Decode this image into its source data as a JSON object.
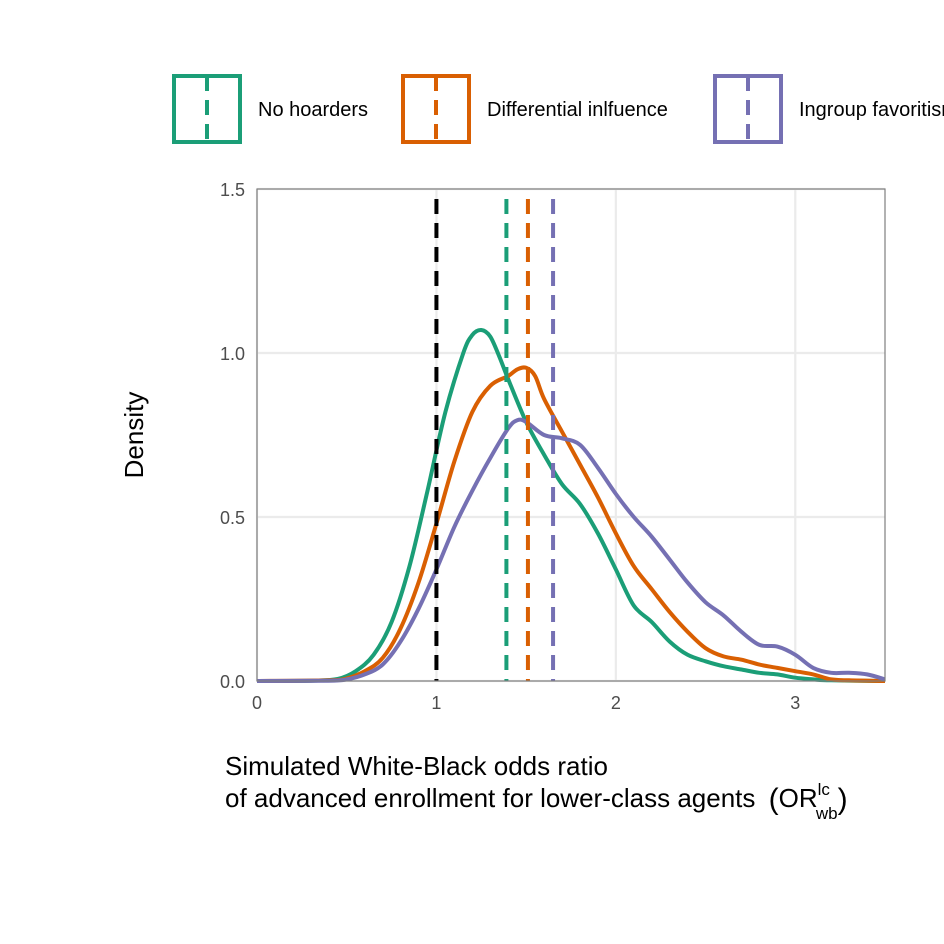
{
  "chart_data": {
    "type": "line",
    "xlabel_line1": "Simulated White-Black odds ratio",
    "xlabel_line2": "of advanced enrollment for lower-class agents",
    "xlabel_symbol": "OR",
    "xlabel_superscript": "lc",
    "xlabel_subscript": "wb",
    "ylabel": "Density",
    "xlim": [
      0,
      3.5
    ],
    "ylim": [
      0,
      1.5
    ],
    "x_ticks": [
      0,
      1,
      2,
      3
    ],
    "x_tick_labels": [
      "0",
      "1",
      "2",
      "3"
    ],
    "y_ticks": [
      0,
      0.5,
      1.0,
      1.5
    ],
    "y_tick_labels": [
      "0.0",
      "0.5",
      "1.0",
      "1.5"
    ],
    "grid": true,
    "legend_position": "top",
    "reference_line": {
      "x": 1,
      "color": "#000000"
    },
    "series": [
      {
        "name": "No hoarders",
        "color": "#1b9e77",
        "mean": 1.39,
        "points": [
          [
            0,
            0
          ],
          [
            0.3,
            0.001
          ],
          [
            0.45,
            0.006
          ],
          [
            0.55,
            0.03
          ],
          [
            0.65,
            0.08
          ],
          [
            0.75,
            0.18
          ],
          [
            0.85,
            0.35
          ],
          [
            0.95,
            0.58
          ],
          [
            1.05,
            0.82
          ],
          [
            1.15,
            1.0
          ],
          [
            1.2,
            1.055
          ],
          [
            1.25,
            1.07
          ],
          [
            1.3,
            1.05
          ],
          [
            1.35,
            0.99
          ],
          [
            1.4,
            0.92
          ],
          [
            1.5,
            0.79
          ],
          [
            1.6,
            0.69
          ],
          [
            1.7,
            0.6
          ],
          [
            1.8,
            0.54
          ],
          [
            1.9,
            0.45
          ],
          [
            2.0,
            0.34
          ],
          [
            2.1,
            0.23
          ],
          [
            2.2,
            0.18
          ],
          [
            2.3,
            0.12
          ],
          [
            2.4,
            0.08
          ],
          [
            2.5,
            0.06
          ],
          [
            2.6,
            0.045
          ],
          [
            2.7,
            0.035
          ],
          [
            2.8,
            0.025
          ],
          [
            2.9,
            0.02
          ],
          [
            3.0,
            0.01
          ],
          [
            3.1,
            0.005
          ],
          [
            3.2,
            0.002
          ],
          [
            3.5,
            0
          ]
        ]
      },
      {
        "name": "Differential inlfuence",
        "color": "#d95f02",
        "mean": 1.51,
        "points": [
          [
            0,
            0
          ],
          [
            0.4,
            0.002
          ],
          [
            0.5,
            0.008
          ],
          [
            0.6,
            0.03
          ],
          [
            0.7,
            0.07
          ],
          [
            0.8,
            0.16
          ],
          [
            0.9,
            0.3
          ],
          [
            1.0,
            0.48
          ],
          [
            1.1,
            0.67
          ],
          [
            1.2,
            0.82
          ],
          [
            1.3,
            0.9
          ],
          [
            1.4,
            0.93
          ],
          [
            1.45,
            0.95
          ],
          [
            1.5,
            0.955
          ],
          [
            1.55,
            0.93
          ],
          [
            1.6,
            0.86
          ],
          [
            1.7,
            0.76
          ],
          [
            1.8,
            0.66
          ],
          [
            1.9,
            0.56
          ],
          [
            2.0,
            0.45
          ],
          [
            2.1,
            0.35
          ],
          [
            2.2,
            0.28
          ],
          [
            2.3,
            0.21
          ],
          [
            2.4,
            0.15
          ],
          [
            2.5,
            0.1
          ],
          [
            2.6,
            0.075
          ],
          [
            2.7,
            0.065
          ],
          [
            2.8,
            0.05
          ],
          [
            2.9,
            0.04
          ],
          [
            3.0,
            0.03
          ],
          [
            3.1,
            0.02
          ],
          [
            3.2,
            0.005
          ],
          [
            3.3,
            0.002
          ],
          [
            3.5,
            0
          ]
        ]
      },
      {
        "name": "Ingroup favoritism",
        "color": "#7570b3",
        "mean": 1.65,
        "points": [
          [
            0,
            0
          ],
          [
            0.4,
            0.001
          ],
          [
            0.5,
            0.005
          ],
          [
            0.6,
            0.02
          ],
          [
            0.7,
            0.05
          ],
          [
            0.8,
            0.12
          ],
          [
            0.9,
            0.22
          ],
          [
            1.0,
            0.34
          ],
          [
            1.1,
            0.47
          ],
          [
            1.2,
            0.58
          ],
          [
            1.3,
            0.68
          ],
          [
            1.4,
            0.77
          ],
          [
            1.45,
            0.795
          ],
          [
            1.5,
            0.79
          ],
          [
            1.6,
            0.75
          ],
          [
            1.7,
            0.74
          ],
          [
            1.8,
            0.72
          ],
          [
            1.9,
            0.65
          ],
          [
            2.0,
            0.57
          ],
          [
            2.1,
            0.5
          ],
          [
            2.2,
            0.44
          ],
          [
            2.3,
            0.37
          ],
          [
            2.4,
            0.3
          ],
          [
            2.5,
            0.24
          ],
          [
            2.6,
            0.2
          ],
          [
            2.7,
            0.15
          ],
          [
            2.8,
            0.11
          ],
          [
            2.9,
            0.105
          ],
          [
            3.0,
            0.08
          ],
          [
            3.1,
            0.04
          ],
          [
            3.2,
            0.025
          ],
          [
            3.3,
            0.025
          ],
          [
            3.4,
            0.02
          ],
          [
            3.5,
            0.005
          ]
        ]
      }
    ]
  }
}
